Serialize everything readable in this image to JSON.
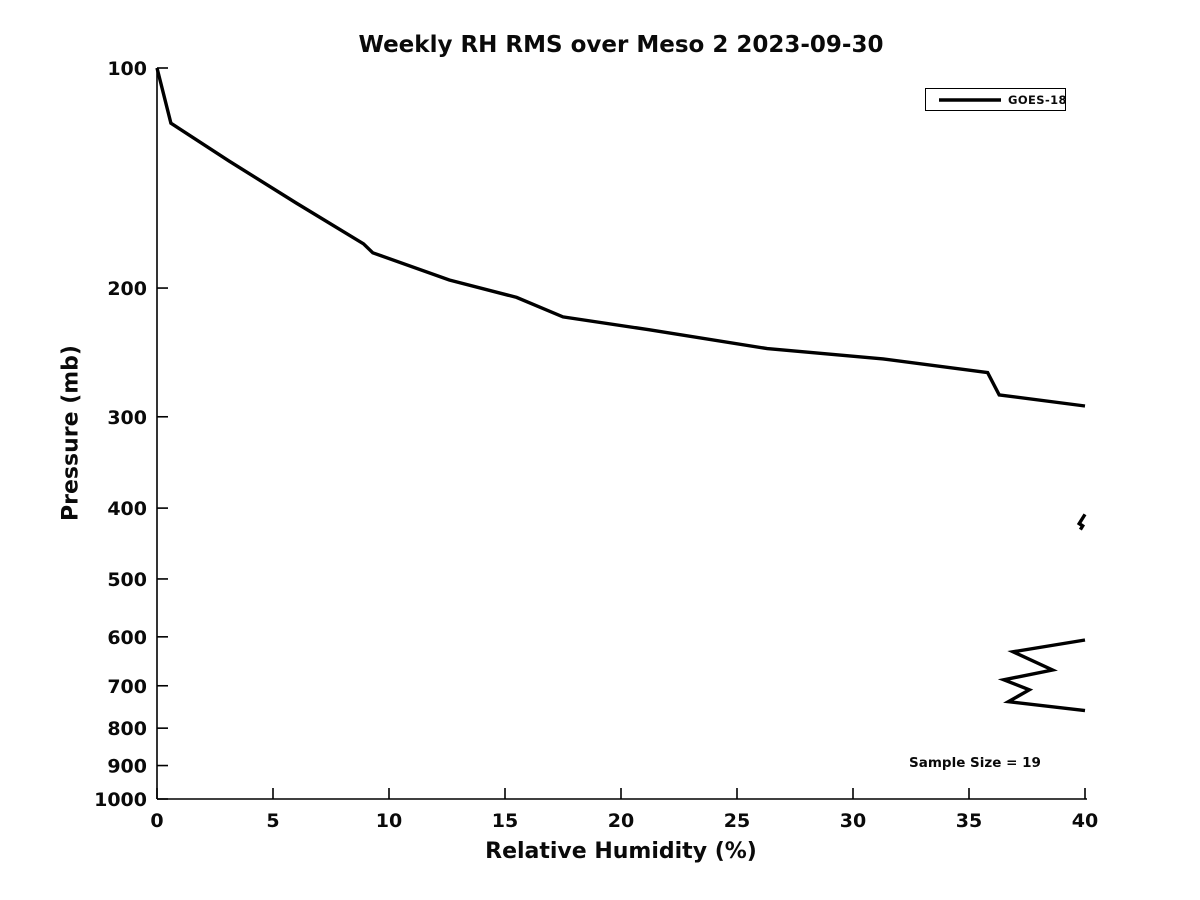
{
  "figure": {
    "background": "#ffffff",
    "foreground": "#000000"
  },
  "chart_data": {
    "type": "line",
    "title": "Weekly RH RMS over Meso 2 2023-09-30",
    "xlabel": "Relative Humidity (%)",
    "ylabel": "Pressure (mb)",
    "xlim": [
      0,
      40
    ],
    "ylim": [
      100,
      1000
    ],
    "x_scale": "linear",
    "y_scale": "log",
    "y_inverted": true,
    "grid": false,
    "frame": "left-bottom-spines-only",
    "tick_direction": "in",
    "x_ticks": [
      0,
      5,
      10,
      15,
      20,
      25,
      30,
      35,
      40
    ],
    "y_ticks": [
      100,
      200,
      300,
      400,
      500,
      600,
      700,
      800,
      900,
      1000
    ],
    "legend": {
      "position": "upper right",
      "entries": [
        {
          "label": "GOES-18",
          "color": "#000000",
          "line_width": 3.4
        }
      ]
    },
    "annotation": {
      "text": "Sample Size = 19"
    },
    "series": [
      {
        "name": "GOES-18",
        "color": "#000000",
        "line_width": 3.4,
        "note": "RH RMS profile vs pressure; curve clipped at x-limit 40%, producing three visible segments",
        "segments": [
          [
            [
              0,
              100
            ],
            [
              0.6,
              119
            ],
            [
              3.1,
              134
            ],
            [
              6.0,
              153
            ],
            [
              8.9,
              174
            ],
            [
              9.3,
              179
            ],
            [
              12.6,
              195
            ],
            [
              15.5,
              206
            ],
            [
              17.5,
              219
            ],
            [
              21.2,
              228
            ],
            [
              26.3,
              242
            ],
            [
              31.3,
              250
            ],
            [
              35.8,
              261
            ],
            [
              36.3,
              280
            ],
            [
              40,
              290
            ]
          ],
          [
            [
              40,
              408
            ],
            [
              39.75,
              420
            ],
            [
              39.9,
              423
            ],
            [
              39.8,
              428
            ]
          ],
          [
            [
              40,
              606
            ],
            [
              36.9,
              629
            ],
            [
              38.6,
              666
            ],
            [
              36.5,
              687
            ],
            [
              37.6,
              709
            ],
            [
              36.7,
              736
            ],
            [
              40,
              757
            ]
          ]
        ]
      }
    ]
  }
}
